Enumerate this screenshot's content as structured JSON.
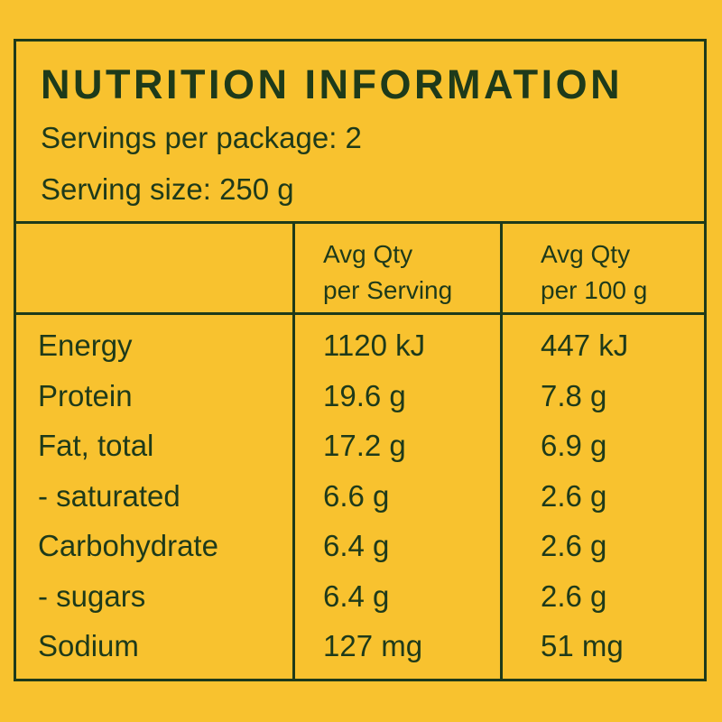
{
  "panel": {
    "title": "NUTRITION INFORMATION",
    "servings_per_package": "Servings per package: 2",
    "serving_size": "Serving size: 250 g"
  },
  "table": {
    "headers": [
      {
        "line1": "Avg Qty",
        "line2": "per Serving"
      },
      {
        "line1": "Avg Qty",
        "line2": "per 100 g"
      }
    ],
    "rows": [
      {
        "nutrient": "Energy",
        "per_serving": "1120 kJ",
        "per_100g": "447 kJ"
      },
      {
        "nutrient": "Protein",
        "per_serving": "19.6 g",
        "per_100g": "7.8 g"
      },
      {
        "nutrient": "Fat, total",
        "per_serving": "17.2 g",
        "per_100g": "6.9 g"
      },
      {
        "nutrient": "- saturated",
        "per_serving": "6.6 g",
        "per_100g": "2.6 g"
      },
      {
        "nutrient": "Carbohydrate",
        "per_serving": "6.4 g",
        "per_100g": "2.6 g"
      },
      {
        "nutrient": "- sugars",
        "per_serving": "6.4 g",
        "per_100g": "2.6 g"
      },
      {
        "nutrient": "Sodium",
        "per_serving": "127 mg",
        "per_100g": "51 mg"
      }
    ]
  },
  "colors": {
    "background": "#f8c22f",
    "ink": "#1e3a1a"
  }
}
